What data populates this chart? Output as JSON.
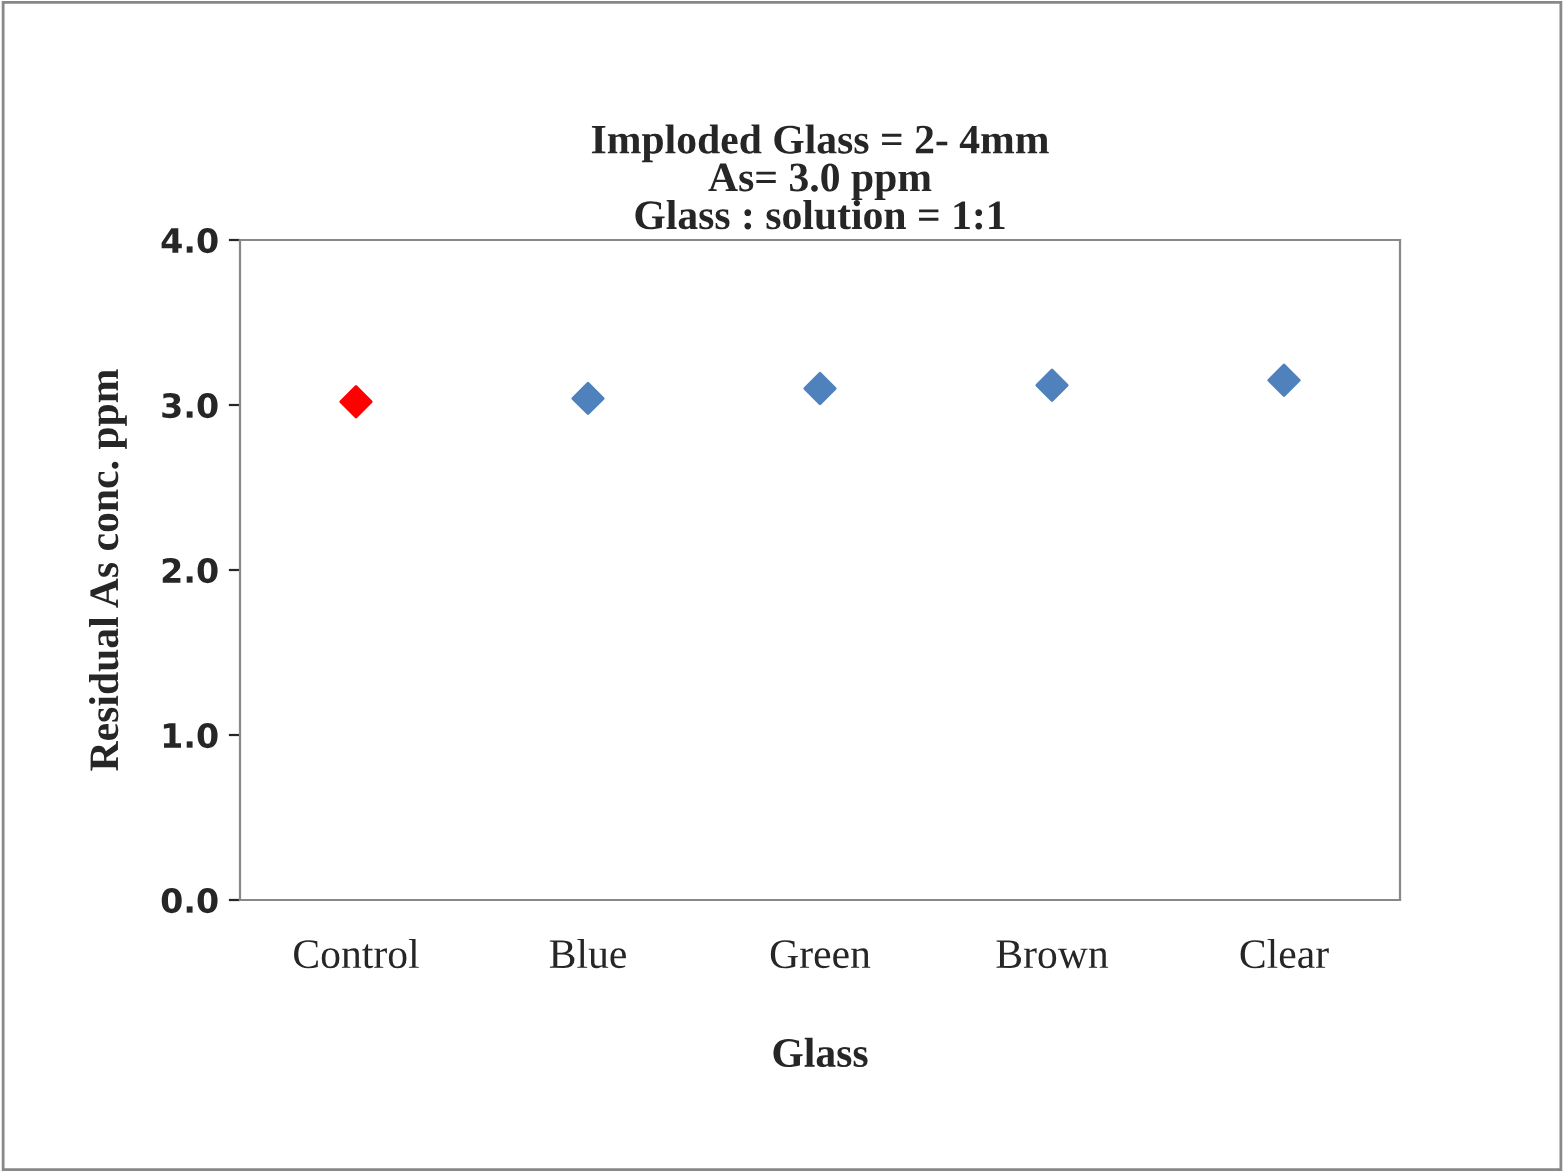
{
  "chart_data": {
    "type": "scatter",
    "title": "Imploded Glass = 2- 4mm\nAs= 3.0 ppm\nGlass : solution = 1:1",
    "xlabel": "Glass",
    "ylabel": "Residual As conc. ppm",
    "categories": [
      "Control",
      "Blue",
      "Green",
      "Brown",
      "Clear"
    ],
    "values": [
      3.02,
      3.04,
      3.1,
      3.12,
      3.15
    ],
    "colors": [
      "#ff0000",
      "#4f81bd",
      "#4f81bd",
      "#4f81bd",
      "#4f81bd"
    ],
    "marker": "diamond",
    "ylim": [
      0,
      4
    ],
    "yticks": [
      {
        "value": 0,
        "label": "0.0"
      },
      {
        "value": 1,
        "label": "1.0"
      },
      {
        "value": 2,
        "label": "2.0"
      },
      {
        "value": 3,
        "label": "3.0"
      },
      {
        "value": 4,
        "label": "4.0"
      }
    ],
    "grid": false,
    "legend": false
  }
}
